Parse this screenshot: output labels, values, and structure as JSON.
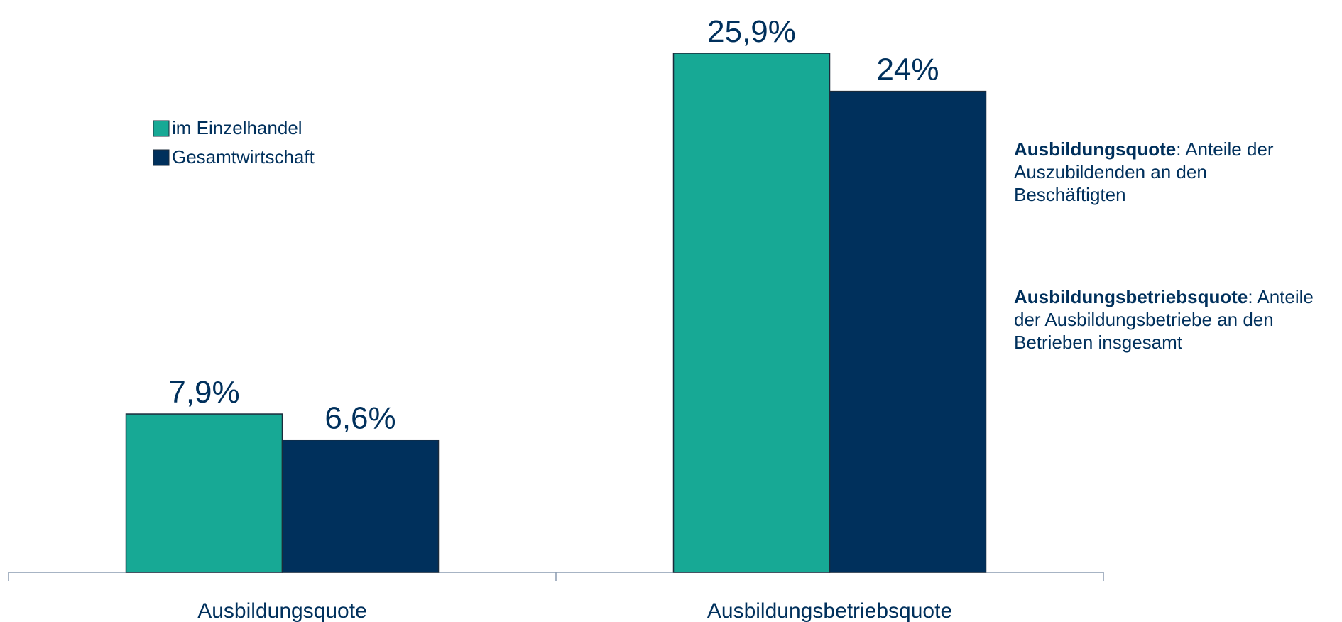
{
  "chart_data": {
    "type": "bar",
    "categories": [
      "Ausbildungsquote",
      "Ausbildungsbetriebsquote"
    ],
    "series": [
      {
        "name": "im Einzelhandel",
        "color": "#17a995",
        "values": [
          7.9,
          25.9
        ],
        "value_labels": [
          "7,9%",
          "25,9%"
        ]
      },
      {
        "name": "Gesamtwirtschaft",
        "color": "#00305c",
        "values": [
          6.6,
          24
        ],
        "value_labels": [
          "6,6%",
          "24%"
        ]
      }
    ],
    "legend": "upper left",
    "annotations": [
      {
        "label": "Ausbildungsquote",
        "text": ": Anteile der Auszubildenden an den Beschäftigten"
      },
      {
        "label": "Ausbildungsbetriebsquote",
        "text": ": Anteile der Ausbildungsbetriebe an den Betrieben insgesamt"
      }
    ]
  }
}
